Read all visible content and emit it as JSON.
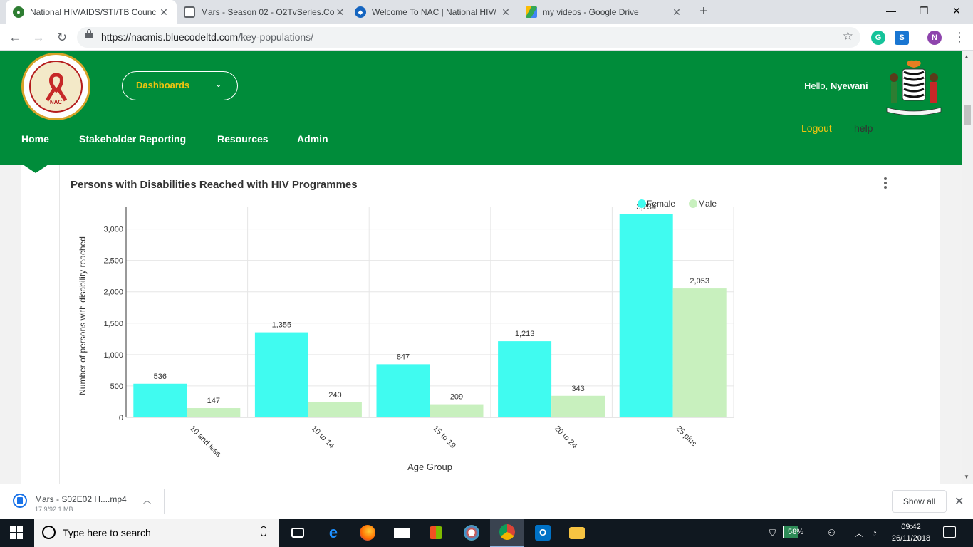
{
  "browser": {
    "tabs": [
      {
        "title": "National HIV/AIDS/STI/TB Counc",
        "active": true
      },
      {
        "title": "Mars - Season 02 - O2TvSeries.Co",
        "active": false
      },
      {
        "title": "Welcome To NAC | National HIV/",
        "active": false
      },
      {
        "title": "my videos - Google Drive",
        "active": false
      }
    ],
    "url_host": "https://nacmis.bluecodeltd.com",
    "url_path": "/key-populations/",
    "profile_initial": "N"
  },
  "header": {
    "dashboards_label": "Dashboards",
    "greeting": "Hello, ",
    "username": "Nyewani",
    "logout_label": "Logout",
    "help_label": "help",
    "logo_text": "NAC",
    "nav": [
      "Home",
      "Stakeholder Reporting",
      "Resources",
      "Admin"
    ]
  },
  "chart": {
    "title": "Persons with Disabilities Reached with HIV Programmes"
  },
  "chart_data": {
    "type": "bar",
    "title": "Persons with Disabilities Reached with HIV Programmes",
    "xlabel": "Age Group",
    "ylabel": "Number of persons with disability reached",
    "categories": [
      "10 and less",
      "10 to 14",
      "15 to 19",
      "20 to 24",
      "25 plus"
    ],
    "series": [
      {
        "name": "Female",
        "color": "#40fbf0",
        "values": [
          536,
          1355,
          847,
          1213,
          3234
        ]
      },
      {
        "name": "Male",
        "color": "#c8f0be",
        "values": [
          147,
          240,
          209,
          343,
          2053
        ]
      }
    ],
    "ylim": [
      0,
      3234
    ],
    "yticks": [
      0,
      500,
      1000,
      1500,
      2000,
      2500,
      3000
    ],
    "grid": true,
    "legend_position": "top-right"
  },
  "downloads": {
    "file_name": "Mars - S02E02 H....mp4",
    "progress": "17.9/92.1 MB",
    "show_all_label": "Show all"
  },
  "taskbar": {
    "search_placeholder": "Type here to search",
    "battery_percent": "58%",
    "battery_level": 0.58,
    "time": "09:42",
    "date": "26/11/2018"
  }
}
